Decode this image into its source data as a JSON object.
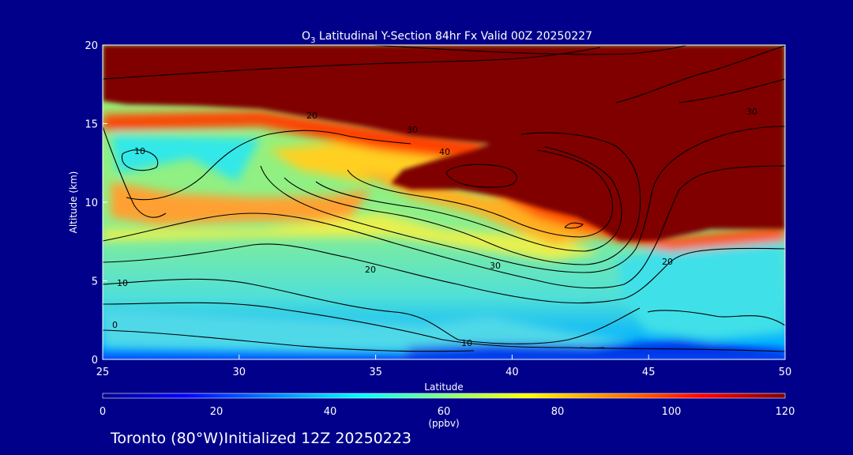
{
  "chart_data": {
    "type": "heatmap",
    "title_prefix": "O",
    "title_subscript": "3",
    "title_rest": " Latitudinal Y-Section 84hr  Fx Valid 00Z 20250227",
    "xlabel": "Latitude",
    "ylabel": "Altitude (km)",
    "xlim": [
      25,
      50
    ],
    "ylim": [
      0,
      20
    ],
    "xticks": [
      25,
      30,
      35,
      40,
      45,
      50
    ],
    "yticks": [
      0,
      5,
      10,
      15,
      20
    ],
    "colorbar": {
      "ticks": [
        0,
        20,
        40,
        60,
        80,
        100,
        120
      ],
      "unit_label": "(ppbv)",
      "range": [
        0,
        120
      ]
    },
    "contour_labels": [
      "0",
      "10",
      "10",
      "10",
      "20",
      "20",
      "20",
      "30",
      "30",
      "30",
      "40"
    ],
    "footer": "Toronto (80°W)Initialized 12Z 20250223"
  },
  "colors": {
    "background": "#00008b",
    "high_ozone": "#800000",
    "contour": "#000000"
  }
}
